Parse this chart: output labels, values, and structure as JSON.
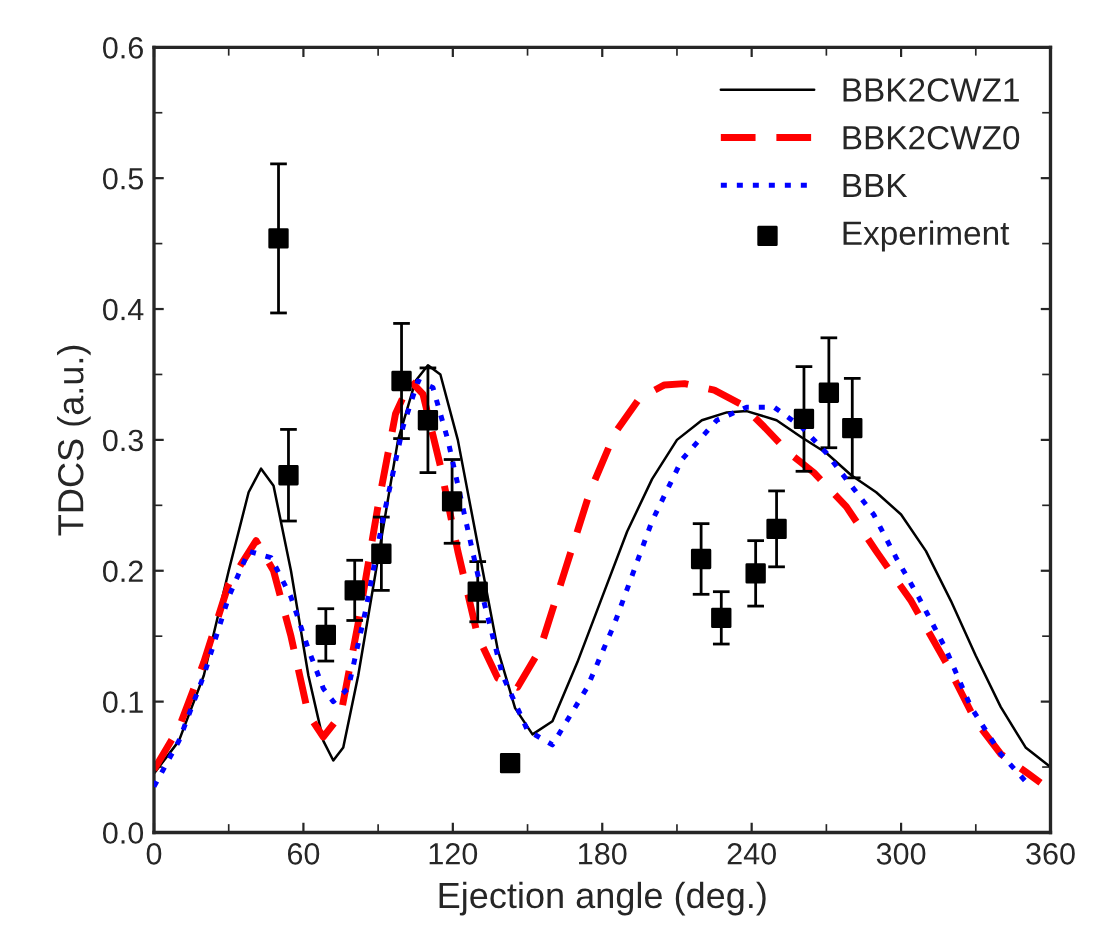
{
  "chart_data": {
    "type": "line",
    "xlabel": "Ejection angle (deg.)",
    "ylabel": "TDCS (a.u.)",
    "xlim": [
      0,
      360
    ],
    "xticks": [
      0,
      60,
      120,
      180,
      240,
      300,
      360
    ],
    "ylim": [
      0,
      0.6
    ],
    "yticks": [
      {
        "value": 0,
        "label": "0.0"
      },
      0.1,
      0.2,
      0.3,
      0.4,
      0.5,
      0.6
    ],
    "legend": "top right",
    "grid": false,
    "series": [
      {
        "name": "BBK2CWZ1",
        "color": "#000000",
        "line_style": "solid",
        "marker": "none",
        "x": [
          0,
          10,
          20,
          30,
          38,
          43,
          48,
          55,
          62,
          68,
          72,
          76,
          82,
          90,
          98,
          105,
          110,
          115,
          122,
          130,
          138,
          145,
          152,
          160,
          170,
          180,
          190,
          200,
          210,
          220,
          230,
          238,
          250,
          260,
          270,
          280,
          290,
          300,
          310,
          320,
          330,
          340,
          350,
          360
        ],
        "values": [
          0.045,
          0.07,
          0.12,
          0.2,
          0.26,
          0.278,
          0.265,
          0.2,
          0.12,
          0.07,
          0.055,
          0.065,
          0.12,
          0.21,
          0.3,
          0.345,
          0.357,
          0.35,
          0.3,
          0.22,
          0.14,
          0.095,
          0.075,
          0.085,
          0.13,
          0.18,
          0.23,
          0.27,
          0.3,
          0.315,
          0.321,
          0.322,
          0.315,
          0.302,
          0.29,
          0.273,
          0.26,
          0.243,
          0.215,
          0.177,
          0.135,
          0.096,
          0.065,
          0.05
        ]
      },
      {
        "name": "BBK2CWZ0",
        "color": "#ff0000",
        "line_style": "dashed",
        "marker": "none",
        "x": [
          0,
          10,
          20,
          30,
          41,
          48,
          55,
          62,
          68,
          75,
          82,
          90,
          97,
          103,
          108,
          115,
          122,
          130,
          138,
          146,
          155,
          165,
          175,
          185,
          195,
          205,
          213,
          225,
          236,
          245,
          255,
          265,
          278,
          290,
          304,
          318,
          330,
          340,
          351,
          356
        ],
        "values": [
          0.048,
          0.08,
          0.13,
          0.19,
          0.223,
          0.2,
          0.15,
          0.09,
          0.073,
          0.09,
          0.16,
          0.25,
          0.32,
          0.345,
          0.335,
          0.28,
          0.215,
          0.15,
          0.118,
          0.111,
          0.14,
          0.2,
          0.26,
          0.305,
          0.332,
          0.342,
          0.343,
          0.338,
          0.327,
          0.31,
          0.29,
          0.275,
          0.249,
          0.215,
          0.177,
          0.13,
          0.085,
          0.06,
          0.045,
          0.038
        ]
      },
      {
        "name": "BBK",
        "color": "#0000ff",
        "line_style": "dotted",
        "marker": "none",
        "x": [
          0,
          10,
          20,
          30,
          38,
          47,
          55,
          62,
          68,
          72,
          78,
          85,
          92,
          100,
          106,
          112,
          118,
          125,
          132,
          140,
          150,
          160,
          174,
          185,
          200,
          212,
          226,
          238,
          249,
          260,
          270,
          280,
          289,
          298,
          307,
          318,
          328,
          340,
          351
        ],
        "values": [
          0.035,
          0.07,
          0.12,
          0.18,
          0.215,
          0.21,
          0.18,
          0.14,
          0.11,
          0.1,
          0.11,
          0.17,
          0.24,
          0.31,
          0.345,
          0.34,
          0.3,
          0.24,
          0.18,
          0.12,
          0.078,
          0.067,
          0.111,
          0.16,
          0.238,
          0.285,
          0.315,
          0.325,
          0.325,
          0.31,
          0.29,
          0.265,
          0.243,
          0.21,
          0.18,
          0.14,
          0.096,
          0.06,
          0.037
        ]
      },
      {
        "name": "Experiment",
        "type": "scatter",
        "color": "#000000",
        "marker": "square",
        "x": [
          50,
          54,
          69,
          80.6,
          91.3,
          99.4,
          110,
          119.7,
          130,
          143,
          219.7,
          227.8,
          241.6,
          250,
          261,
          271,
          280.4
        ],
        "values": [
          0.454,
          0.273,
          0.151,
          0.185,
          0.213,
          0.345,
          0.315,
          0.253,
          0.184,
          0.053,
          0.209,
          0.164,
          0.198,
          0.232,
          0.316,
          0.336,
          0.309
        ],
        "errors": [
          0.057,
          0.035,
          0.02,
          0.023,
          0.028,
          0.044,
          0.04,
          0.032,
          0.023,
          null,
          0.027,
          0.02,
          0.025,
          0.029,
          0.04,
          0.042,
          0.038
        ]
      }
    ]
  }
}
